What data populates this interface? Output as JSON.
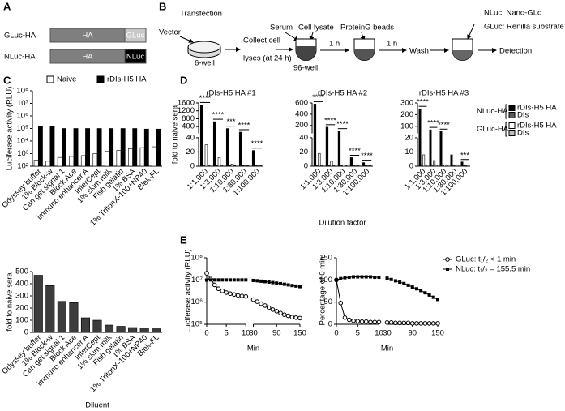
{
  "panel_a": {
    "label": "A",
    "constructs": [
      {
        "name": "GLuc-HA",
        "parts": [
          "HA",
          "GLuc"
        ]
      },
      {
        "name": "NLuc-HA",
        "parts": [
          "HA",
          "NLuc"
        ]
      }
    ]
  },
  "panel_b": {
    "label": "B",
    "transfection": "Transfection",
    "vector": "Vector",
    "plate": "6-well",
    "collect": [
      "Collect cell",
      "lyses (at 24 h)"
    ],
    "serum": "Serum",
    "cell_lysate": "Cell lysate",
    "well": "96-well",
    "incubation_1": "1 h",
    "beads": "ProteinG beads",
    "incubation_2": "1 h",
    "wash": "Wash",
    "substrates": [
      "NLuc: Nano-GLo",
      "GLuc: Renilla substrate"
    ],
    "detection": "Detection"
  },
  "chart_data": [
    {
      "type": "bar",
      "panel": "C",
      "ylabel": "Luciferase activity (RLU)",
      "log_scale": true,
      "legend": "top",
      "categories": [
        "Odyssey buffer",
        "1% Block-w",
        "Can get signal 1",
        "Block Ace",
        "immuno enhancer A",
        "InterCept",
        "1% skim milk",
        "Fish gelatin",
        "1% BSA",
        "1% TritonX-100+NP40",
        "Blek-FL"
      ],
      "series": [
        {
          "name": "Naive",
          "color": "#ffffff",
          "values": [
            300,
            250,
            500,
            600,
            700,
            1000,
            1500,
            1800,
            2500,
            3000,
            3500
          ]
        },
        {
          "name": "rDIs-H5 HA",
          "color": "#000000",
          "values": [
            150000,
            150000,
            100000,
            100000,
            100000,
            100000,
            100000,
            100000,
            100000,
            90000,
            90000
          ]
        }
      ],
      "ylim": [
        100,
        100000000
      ],
      "yticks": [
        {
          "value": 100,
          "label": "10²"
        },
        {
          "value": 1000,
          "label": "10³"
        },
        {
          "value": 10000,
          "label": "10⁴"
        },
        {
          "value": 100000,
          "label": "10⁵"
        },
        {
          "value": 1000000,
          "label": "10⁶"
        },
        {
          "value": 10000000,
          "label": "10⁷"
        },
        {
          "value": 100000000,
          "label": "10⁸"
        }
      ]
    },
    {
      "type": "bar",
      "ylabel": "fold to naive sera",
      "xlabel": "Diluent",
      "categories": [
        "Odyssey buffer",
        "1% Block-w",
        "Can get signal 1",
        "Block Ace",
        "immuno enhancer A",
        "InterCept",
        "1% skim milk",
        "Fish gelatin",
        "1% BSA",
        "1% TritonX-100+NP40",
        "Blek-FL"
      ],
      "values": [
        470,
        385,
        255,
        245,
        120,
        100,
        60,
        50,
        40,
        35,
        30
      ],
      "color": "#3c3c3c",
      "ylim": [
        0,
        500
      ],
      "yticks": [
        0,
        100,
        200,
        300,
        400,
        500
      ]
    },
    {
      "type": "bar",
      "panel": "D",
      "title": "rDIs-H5 HA #1",
      "ylabel": "fold to naive sera",
      "categories": [
        "1:1,000",
        "1:3,000",
        "1:10,000",
        "1:30,000",
        "1:100,000"
      ],
      "series": [
        {
          "color": "#000000",
          "values": [
            1500,
            650,
            300,
            120,
            22
          ]
        },
        {
          "color": "#5a5a5a",
          "values": [
            1.2,
            1,
            0.8,
            0.8,
            0.7
          ]
        },
        {
          "color": "#ffffff",
          "values": [
            30,
            12,
            3,
            1,
            0.5
          ]
        },
        {
          "color": "#bdbdbd",
          "values": [
            1,
            1,
            0.8,
            0.7,
            0.6
          ]
        }
      ],
      "significance": [
        "****",
        "****",
        "***",
        "****",
        "****"
      ],
      "ylim": [
        0,
        1600
      ],
      "ybreak": [
        40,
        60
      ],
      "yticks": [
        0,
        20,
        40,
        400,
        800,
        1200,
        1600
      ]
    },
    {
      "type": "bar",
      "title": "rDIs-H5 HA #2",
      "xlabel": "Dilution factor",
      "categories": [
        "1:1,000",
        "1:3,000",
        "1:10,000",
        "1:30,000",
        "1:100,000"
      ],
      "series": [
        {
          "color": "#000000",
          "values": [
            580,
            170,
            100,
            12,
            5
          ]
        },
        {
          "color": "#5a5a5a",
          "values": [
            1,
            1,
            1,
            1,
            1
          ]
        },
        {
          "color": "#ffffff",
          "values": [
            18,
            7,
            2,
            1,
            0.5
          ]
        },
        {
          "color": "#bdbdbd",
          "values": [
            1,
            1,
            1,
            1,
            1
          ]
        }
      ],
      "significance": [
        "****",
        "****",
        "****",
        "****",
        "****"
      ],
      "ylim": [
        0,
        600
      ],
      "ybreak": [
        40,
        60
      ],
      "yticks": [
        0,
        20,
        40,
        200,
        400,
        600
      ]
    },
    {
      "type": "bar",
      "title": "rDIs-H5 HA #3",
      "legend": "right",
      "legend_groups": [
        "NLuc-HA",
        "GLuc-HA"
      ],
      "categories": [
        "1:1,000",
        "1:3,000",
        "1:10,000",
        "1:30,000",
        "1:100,000"
      ],
      "series": [
        {
          "name": "rDIs-H5 HA",
          "color": "#000000",
          "values": [
            250,
            70,
            55,
            8,
            3
          ]
        },
        {
          "name": "DIs",
          "color": "#5a5a5a",
          "values": [
            1,
            1,
            1,
            1,
            1
          ]
        },
        {
          "name": "rDIs-H5 HA",
          "color": "#ffffff",
          "values": [
            8,
            4,
            1,
            0.5,
            0.3
          ]
        },
        {
          "name": "DIs",
          "color": "#bdbdbd",
          "values": [
            1,
            1,
            1,
            1,
            1
          ]
        }
      ],
      "significance": [
        "****",
        "****",
        "****",
        null,
        "***"
      ],
      "ylim": [
        0,
        300
      ],
      "ybreak": [
        20,
        40
      ],
      "yticks": [
        0,
        10,
        20,
        100,
        200,
        300
      ]
    },
    {
      "type": "line",
      "panel": "E",
      "ylabel": "Luciferase activity (RLU)",
      "xlabel": "Min",
      "log_scale": true,
      "x": [
        0,
        1,
        2,
        3,
        4,
        5,
        6,
        7,
        8,
        9,
        10,
        30,
        40,
        50,
        60,
        70,
        80,
        90,
        100,
        110,
        120,
        130,
        140,
        150
      ],
      "series": [
        {
          "color": "#000000",
          "marker": "open-circle",
          "values": [
            20000000,
            11000000,
            6000000,
            4000000,
            3200000,
            2700000,
            2400000,
            2200000,
            2000000,
            1900000,
            1800000,
            1300000,
            1050000,
            850000,
            700000,
            560000,
            460000,
            390000,
            320000,
            270000,
            240000,
            210000,
            200000,
            190000
          ]
        },
        {
          "color": "#000000",
          "marker": "filled-square",
          "values": [
            9800000,
            10000000,
            10000000,
            10000000,
            10000000,
            10000000,
            10000000,
            10000000,
            10000000,
            10000000,
            10000000,
            9500000,
            9200000,
            8800000,
            8400000,
            8000000,
            7600000,
            7200000,
            6800000,
            6400000,
            6000000,
            5600000,
            5300000,
            5000000
          ]
        }
      ],
      "xlim": [
        0,
        150
      ],
      "xbreak": [
        10,
        30
      ],
      "xticks": [
        0,
        5,
        10,
        30,
        90,
        150
      ],
      "ylim": [
        100000,
        100000000
      ],
      "yticks": [
        {
          "value": 100000,
          "label": "10⁵"
        },
        {
          "value": 1000000,
          "label": "10⁶"
        },
        {
          "value": 10000000,
          "label": "10⁷"
        },
        {
          "value": 100000000,
          "label": "10⁸"
        }
      ]
    },
    {
      "type": "line",
      "ylabel": "Percentage of 0 min",
      "xlabel": "Min",
      "legend": "right",
      "x": [
        0,
        1,
        2,
        3,
        4,
        5,
        6,
        7,
        8,
        9,
        10,
        30,
        40,
        50,
        60,
        70,
        80,
        90,
        100,
        110,
        120,
        130,
        140,
        150
      ],
      "series": [
        {
          "name": "GLuc: t₁/₂ < 1 min",
          "color": "#000000",
          "marker": "open-circle",
          "values": [
            100,
            48,
            15,
            10,
            8,
            7,
            6,
            6,
            5,
            5,
            5,
            4,
            4,
            3,
            3,
            3,
            3,
            2,
            2,
            2,
            2,
            2,
            2,
            2
          ]
        },
        {
          "name": "NLuc: t₁/₂ = 155.5 min",
          "color": "#000000",
          "marker": "filled-square",
          "values": [
            100,
            103,
            105,
            106,
            107,
            107,
            107,
            107,
            107,
            106,
            106,
            104,
            101,
            98,
            95,
            92,
            88,
            84,
            80,
            76,
            71,
            66,
            61,
            56
          ]
        }
      ],
      "xlim": [
        0,
        150
      ],
      "xbreak": [
        10,
        30
      ],
      "xticks": [
        0,
        5,
        10,
        30,
        90,
        150
      ],
      "ylim": [
        0,
        150
      ],
      "yticks": [
        0,
        50,
        100,
        150
      ]
    }
  ]
}
